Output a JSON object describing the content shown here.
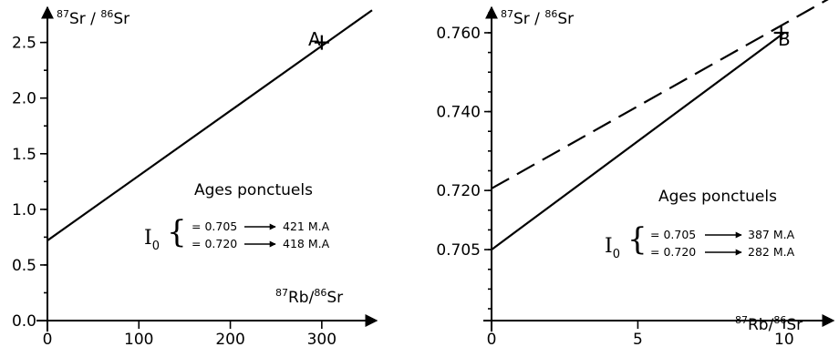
{
  "chart_data": [
    {
      "type": "line",
      "ylabel": {
        "mass_a": "87",
        "el_a": "Sr",
        "sep": " / ",
        "mass_b": "86",
        "el_b": "Sr"
      },
      "xlabel": {
        "mass_a": "87",
        "el_a": "Rb",
        "sep": "/",
        "mass_b": "86",
        "el_b": "Sr"
      },
      "xlim": [
        0,
        355
      ],
      "ylim": [
        0.0,
        2.8
      ],
      "xticks": [
        0,
        100,
        200,
        300
      ],
      "xtick_labels": [
        "0",
        "100",
        "200",
        "300"
      ],
      "yticks": [
        0.0,
        0.5,
        1.0,
        1.5,
        2.0,
        2.5
      ],
      "ytick_labels": [
        "0.0",
        "0.5",
        "1.0",
        "1.5",
        "2.0",
        "2.5"
      ],
      "series": [
        {
          "style": "solid",
          "x": [
            0,
            355
          ],
          "y": [
            0.72,
            2.79
          ]
        }
      ],
      "point": {
        "label": "A",
        "x": 300,
        "y": 2.5
      },
      "annotation": {
        "title": "Ages ponctuels",
        "symbol": "I",
        "subscript": "0",
        "rows": [
          {
            "value": "= 0.705",
            "result": "421 M.A"
          },
          {
            "value": "= 0.720",
            "result": "418 M.A"
          }
        ]
      }
    },
    {
      "type": "line",
      "ylabel": {
        "mass_a": "87",
        "el_a": "Sr",
        "sep": " / ",
        "mass_b": "86",
        "el_b": "Sr"
      },
      "xlabel": {
        "mass_a": "87",
        "el_a": "Rb",
        "sep": "/",
        "mass_b": "86",
        "el_b": "Sr"
      },
      "xlim": [
        0,
        11.5
      ],
      "ylim": [
        0.687,
        0.766
      ],
      "xticks": [
        0,
        5,
        10
      ],
      "xtick_labels": [
        "0",
        "5",
        "10"
      ],
      "yticks": [
        0.705,
        0.72,
        0.74,
        0.76
      ],
      "ytick_labels": [
        "0.705",
        "0.720",
        "0.740",
        "0.760"
      ],
      "series": [
        {
          "style": "solid",
          "x": [
            0,
            10
          ],
          "y": [
            0.705,
            0.76
          ]
        },
        {
          "style": "dashed",
          "x": [
            0,
            11.5
          ],
          "y": [
            0.7205,
            0.7685
          ]
        }
      ],
      "point": {
        "label": "B",
        "x": 9.9,
        "y": 0.76
      },
      "annotation": {
        "title": "Ages ponctuels",
        "symbol": "I",
        "subscript": "0",
        "rows": [
          {
            "value": "= 0.705",
            "result": "387 M.A"
          },
          {
            "value": "= 0.720",
            "result": "282 M.A"
          }
        ]
      }
    }
  ]
}
